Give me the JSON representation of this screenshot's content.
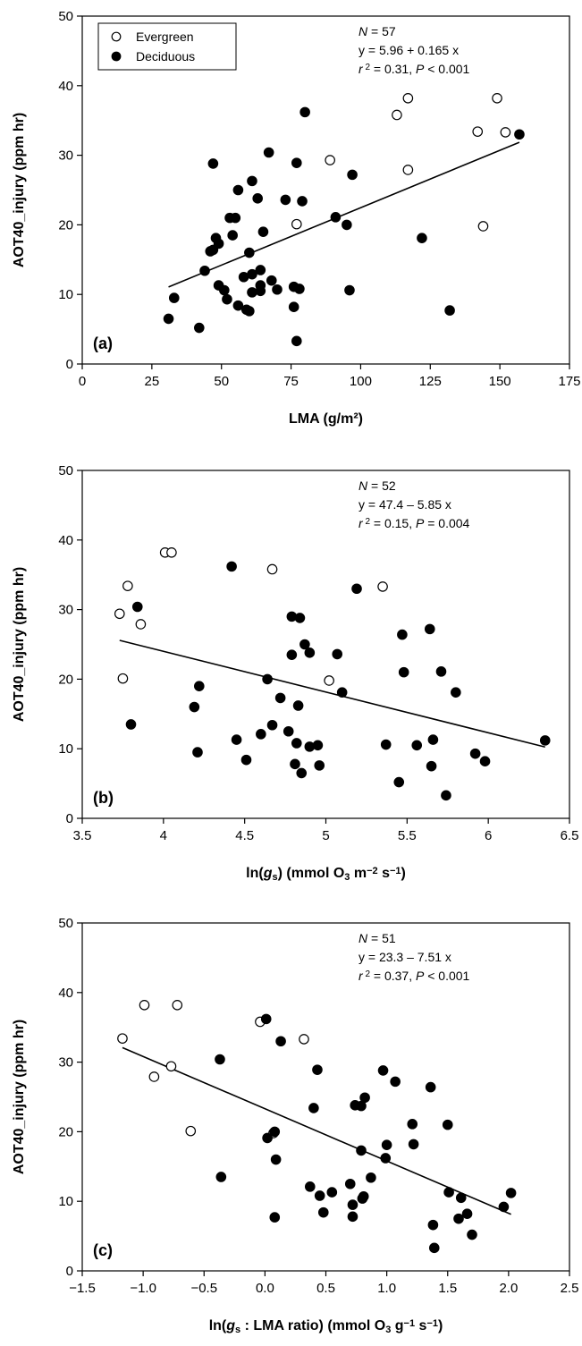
{
  "chart_data": [
    {
      "type": "scatter",
      "panel_label": "(a)",
      "xlabel": "LMA (g/m²)",
      "ylabel": "AOT40_injury (ppm hr)",
      "xlim": [
        0,
        175
      ],
      "ylim": [
        0,
        50
      ],
      "xticks": [
        0,
        25,
        50,
        75,
        100,
        125,
        150,
        175
      ],
      "yticks": [
        0,
        10,
        20,
        30,
        40,
        50
      ],
      "grid": false,
      "legend": {
        "placement": "top-left",
        "entries": [
          {
            "name": "Evergreen",
            "marker": "open-circle"
          },
          {
            "name": "Deciduous",
            "marker": "filled-circle"
          }
        ]
      },
      "annotation": {
        "line1": "N = 57",
        "line2": "y = 5.96 + 0.165 x",
        "line3": "r 2 = 0.31, P < 0.001"
      },
      "regression": {
        "intercept": 5.96,
        "slope": 0.165,
        "x_range": [
          31,
          157
        ]
      },
      "series": [
        {
          "name": "Evergreen",
          "marker": "open-circle",
          "points": [
            [
              77,
              20.1
            ],
            [
              89,
              29.3
            ],
            [
              113,
              35.8
            ],
            [
              117,
              38.2
            ],
            [
              117,
              27.9
            ],
            [
              142,
              33.4
            ],
            [
              144,
              19.8
            ],
            [
              149,
              38.2
            ],
            [
              152,
              33.3
            ]
          ]
        },
        {
          "name": "Deciduous",
          "marker": "filled-circle",
          "points": [
            [
              31,
              6.5
            ],
            [
              33,
              9.5
            ],
            [
              42,
              5.2
            ],
            [
              44,
              13.4
            ],
            [
              46,
              16.2
            ],
            [
              47,
              16.4
            ],
            [
              47,
              28.8
            ],
            [
              48,
              18.1
            ],
            [
              49,
              11.3
            ],
            [
              49,
              17.3
            ],
            [
              51,
              10.6
            ],
            [
              52,
              9.3
            ],
            [
              53,
              21.0
            ],
            [
              54,
              18.5
            ],
            [
              55,
              21.0
            ],
            [
              56,
              8.4
            ],
            [
              56,
              25.0
            ],
            [
              58,
              12.5
            ],
            [
              59,
              7.8
            ],
            [
              60,
              7.6
            ],
            [
              60,
              16.0
            ],
            [
              61,
              10.3
            ],
            [
              61,
              12.9
            ],
            [
              61,
              26.3
            ],
            [
              63,
              23.8
            ],
            [
              64,
              10.5
            ],
            [
              64,
              11.3
            ],
            [
              64,
              13.5
            ],
            [
              65,
              19.0
            ],
            [
              67,
              30.4
            ],
            [
              68,
              12.0
            ],
            [
              70,
              10.7
            ],
            [
              73,
              23.6
            ],
            [
              76,
              8.2
            ],
            [
              76,
              11.1
            ],
            [
              77,
              3.3
            ],
            [
              77,
              28.9
            ],
            [
              78,
              10.8
            ],
            [
              79,
              23.4
            ],
            [
              80,
              36.2
            ],
            [
              91,
              21.1
            ],
            [
              95,
              20.0
            ],
            [
              96,
              10.6
            ],
            [
              97,
              27.2
            ],
            [
              122,
              18.1
            ],
            [
              132,
              7.7
            ],
            [
              157,
              33.0
            ]
          ]
        }
      ]
    },
    {
      "type": "scatter",
      "panel_label": "(b)",
      "xlabel_parts": {
        "pre": "ln(",
        "var": "g",
        "sub": "s",
        "post": ") (mmol O",
        "sub2": "3",
        "post2": " m",
        "sup": "−2",
        "post3": " s",
        "sup2": "−1",
        "post4": ")"
      },
      "ylabel": "AOT40_injury (ppm hr)",
      "xlim": [
        3.5,
        6.5
      ],
      "ylim": [
        0,
        50
      ],
      "xticks": [
        3.5,
        4.0,
        4.5,
        5.0,
        5.5,
        6.0,
        6.5
      ],
      "yticks": [
        0,
        10,
        20,
        30,
        40,
        50
      ],
      "grid": false,
      "annotation": {
        "line1": "N = 52",
        "line2": "y = 47.4 – 5.85 x",
        "line3": "r 2 = 0.15, P = 0.004"
      },
      "regression": {
        "intercept": 47.4,
        "slope": -5.85,
        "x_range": [
          3.73,
          6.35
        ]
      },
      "series": [
        {
          "name": "Evergreen",
          "marker": "open-circle",
          "points": [
            [
              3.73,
              29.4
            ],
            [
              3.75,
              20.1
            ],
            [
              3.78,
              33.4
            ],
            [
              3.86,
              27.9
            ],
            [
              4.01,
              38.2
            ],
            [
              4.05,
              38.2
            ],
            [
              4.67,
              35.8
            ],
            [
              5.02,
              19.8
            ],
            [
              5.35,
              33.3
            ]
          ]
        },
        {
          "name": "Deciduous",
          "marker": "filled-circle",
          "points": [
            [
              3.8,
              13.5
            ],
            [
              3.84,
              30.4
            ],
            [
              4.19,
              16.0
            ],
            [
              4.21,
              9.5
            ],
            [
              4.22,
              19.0
            ],
            [
              4.42,
              36.2
            ],
            [
              4.45,
              11.3
            ],
            [
              4.51,
              8.4
            ],
            [
              4.6,
              12.1
            ],
            [
              4.64,
              20.0
            ],
            [
              4.67,
              13.4
            ],
            [
              4.72,
              17.3
            ],
            [
              4.77,
              12.5
            ],
            [
              4.79,
              29.0
            ],
            [
              4.79,
              23.5
            ],
            [
              4.81,
              7.8
            ],
            [
              4.82,
              10.8
            ],
            [
              4.83,
              16.2
            ],
            [
              4.84,
              28.8
            ],
            [
              4.85,
              6.5
            ],
            [
              4.87,
              25.0
            ],
            [
              4.9,
              23.8
            ],
            [
              4.9,
              10.3
            ],
            [
              4.95,
              10.5
            ],
            [
              4.96,
              7.6
            ],
            [
              5.07,
              23.6
            ],
            [
              5.1,
              18.1
            ],
            [
              5.19,
              33.0
            ],
            [
              5.37,
              10.6
            ],
            [
              5.45,
              5.2
            ],
            [
              5.47,
              26.4
            ],
            [
              5.48,
              21.0
            ],
            [
              5.56,
              10.5
            ],
            [
              5.64,
              27.2
            ],
            [
              5.65,
              7.5
            ],
            [
              5.66,
              11.3
            ],
            [
              5.71,
              21.1
            ],
            [
              5.74,
              3.3
            ],
            [
              5.8,
              18.1
            ],
            [
              5.92,
              9.3
            ],
            [
              5.98,
              8.2
            ],
            [
              6.35,
              11.2
            ]
          ]
        }
      ]
    },
    {
      "type": "scatter",
      "panel_label": "(c)",
      "xlabel_parts": {
        "pre": "ln(",
        "var": "g",
        "sub": "s",
        "post": " : LMA ratio) (mmol O",
        "sub2": "3",
        "post2": " g",
        "sup": "−1",
        "post3": " s",
        "sup2": "−1",
        "post4": ")"
      },
      "ylabel": "AOT40_injury (ppm hr)",
      "xlim": [
        -1.5,
        2.5
      ],
      "ylim": [
        0,
        50
      ],
      "xticks": [
        -1.5,
        -1.0,
        -0.5,
        0.0,
        0.5,
        1.0,
        1.5,
        2.0,
        2.5
      ],
      "xtick_labels": [
        "−1.5",
        "−1.0",
        "−0.5",
        "0.0",
        "0.5",
        "1.0",
        "1.5",
        "2.0",
        "2.5"
      ],
      "yticks": [
        0,
        10,
        20,
        30,
        40,
        50
      ],
      "grid": false,
      "annotation": {
        "line1": "N = 51",
        "line2": "y = 23.3 – 7.51 x",
        "line3": "r 2 = 0.37, P < 0.001"
      },
      "regression": {
        "intercept": 23.3,
        "slope": -7.51,
        "x_range": [
          -1.17,
          2.02
        ]
      },
      "series": [
        {
          "name": "Evergreen",
          "marker": "open-circle",
          "points": [
            [
              -1.17,
              33.4
            ],
            [
              -0.99,
              38.2
            ],
            [
              -0.91,
              27.9
            ],
            [
              -0.77,
              29.4
            ],
            [
              -0.72,
              38.2
            ],
            [
              -0.61,
              20.1
            ],
            [
              -0.04,
              35.8
            ],
            [
              0.07,
              19.8
            ],
            [
              0.32,
              33.3
            ]
          ]
        },
        {
          "name": "Deciduous",
          "marker": "filled-circle",
          "points": [
            [
              -0.37,
              30.4
            ],
            [
              -0.36,
              13.5
            ],
            [
              0.01,
              36.2
            ],
            [
              0.02,
              19.1
            ],
            [
              0.08,
              20.0
            ],
            [
              0.08,
              7.7
            ],
            [
              0.09,
              16.0
            ],
            [
              0.13,
              33.0
            ],
            [
              0.37,
              12.1
            ],
            [
              0.4,
              23.4
            ],
            [
              0.43,
              28.9
            ],
            [
              0.45,
              10.8
            ],
            [
              0.48,
              8.4
            ],
            [
              0.55,
              11.3
            ],
            [
              0.7,
              12.5
            ],
            [
              0.72,
              9.5
            ],
            [
              0.72,
              7.8
            ],
            [
              0.74,
              23.8
            ],
            [
              0.79,
              23.7
            ],
            [
              0.79,
              17.3
            ],
            [
              0.8,
              10.4
            ],
            [
              0.81,
              10.7
            ],
            [
              0.82,
              24.9
            ],
            [
              0.87,
              13.4
            ],
            [
              0.97,
              28.8
            ],
            [
              0.99,
              16.2
            ],
            [
              1.0,
              18.1
            ],
            [
              1.07,
              27.2
            ],
            [
              1.21,
              21.1
            ],
            [
              1.22,
              18.2
            ],
            [
              1.36,
              26.4
            ],
            [
              1.38,
              6.6
            ],
            [
              1.39,
              3.3
            ],
            [
              1.5,
              21.0
            ],
            [
              1.51,
              11.3
            ],
            [
              1.59,
              7.5
            ],
            [
              1.61,
              10.5
            ],
            [
              1.66,
              8.2
            ],
            [
              1.7,
              5.2
            ],
            [
              1.96,
              9.2
            ],
            [
              2.02,
              11.2
            ]
          ]
        }
      ]
    }
  ]
}
